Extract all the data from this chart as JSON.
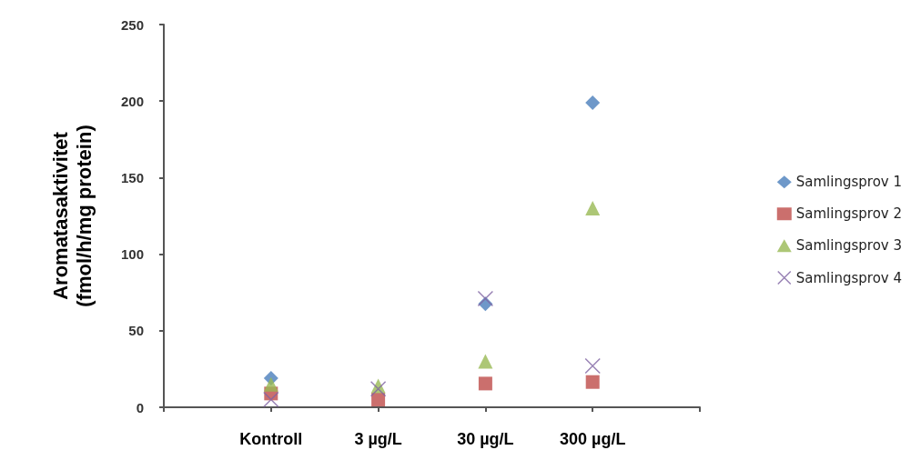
{
  "chart_data": {
    "type": "scatter",
    "ylabel": "Aromatasaktivitet\n(fmol/h/mg protein)",
    "categories": [
      null,
      "Kontroll",
      "3 µg/L",
      "30 µg/L",
      "300 µg/L",
      null
    ],
    "series": [
      {
        "name": "Samlingsprov 1",
        "color": "#4a7ebb",
        "marker": "diamond",
        "values": [
          null,
          19,
          null,
          67.5,
          199,
          null
        ]
      },
      {
        "name": "Samlingsprov 2",
        "color": "#be4b48",
        "marker": "square",
        "values": [
          null,
          9,
          5,
          15.5,
          16.5,
          null
        ]
      },
      {
        "name": "Samlingsprov 3",
        "color": "#98b954",
        "marker": "triangle",
        "values": [
          null,
          15,
          14,
          30,
          130,
          null
        ]
      },
      {
        "name": "Samlingsprov 4",
        "color": "#8064a2",
        "marker": "cross",
        "values": [
          null,
          5,
          12,
          71,
          27,
          null
        ]
      }
    ],
    "ylim": [
      0,
      250
    ],
    "yticks": [
      0,
      50,
      100,
      150,
      200,
      250
    ],
    "grid": false,
    "legend": "right"
  }
}
